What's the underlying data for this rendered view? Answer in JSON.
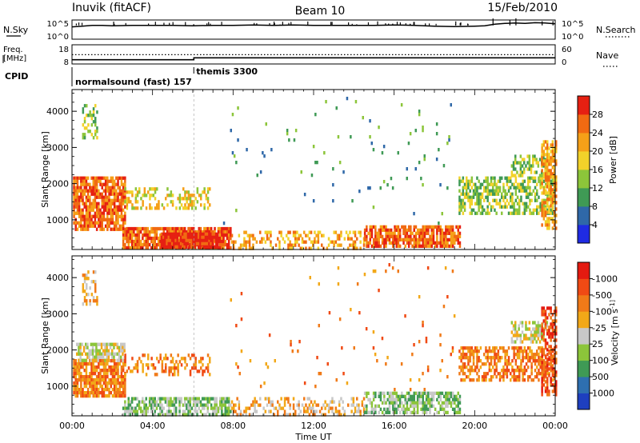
{
  "header": {
    "title": "Inuvik (fitACF)",
    "beam": "Beam 10",
    "date": "15/Feb/2010"
  },
  "chart_data": [
    {
      "type": "line",
      "name": "noise-panel",
      "labels": {
        "left": "N.Sky",
        "right": "N.Search"
      },
      "left_ticks": [
        "10^5",
        "10^0"
      ],
      "right_ticks": [
        "10^5",
        "10^0"
      ],
      "x": [
        0,
        0.5,
        1,
        1.5,
        2,
        3,
        4,
        5,
        6,
        7,
        8,
        9,
        10,
        11,
        12,
        13,
        14,
        15,
        16,
        17,
        18,
        19,
        20,
        20.5,
        21,
        21.5,
        22,
        22.5,
        23,
        23.5,
        24
      ],
      "y_log10": [
        3.2,
        3.4,
        3.6,
        3.6,
        3.5,
        3.6,
        3.6,
        3.6,
        3.5,
        3.6,
        3.6,
        3.7,
        3.6,
        3.7,
        3.6,
        3.6,
        3.6,
        3.6,
        3.7,
        3.6,
        3.4,
        3.3,
        3.4,
        3.5,
        3.9,
        4.1,
        4.2,
        4.1,
        4.3,
        4.2,
        4.0
      ]
    },
    {
      "type": "line",
      "name": "frequency-panel",
      "labels": {
        "left_line1": "Freq.",
        "left_line2": "[MHz]",
        "right": "Nave"
      },
      "left_ticks": [
        "18",
        "8"
      ],
      "right_ticks": [
        "60",
        "0"
      ],
      "freq_x": [
        0,
        6.05,
        6.05,
        24
      ],
      "freq_y": [
        10.2,
        10.2,
        11.2,
        11.2
      ],
      "nave_x": [
        0,
        24
      ],
      "nave_y": [
        29,
        29
      ]
    },
    {
      "type": "table",
      "name": "cpid-panel",
      "label": "CPID",
      "segments": [
        {
          "start": 0,
          "label": "normalsound (fast) 157"
        },
        {
          "start": 6.05,
          "label": "themis 3300"
        }
      ]
    },
    {
      "type": "heatmap",
      "name": "power-panel",
      "xlabel": "",
      "ylabel": "Slant Range [km]",
      "ylim": [
        180,
        4600
      ],
      "yticks": [
        "1000",
        "2000",
        "3000",
        "4000"
      ],
      "colorbar": {
        "label": "Power [dB]",
        "ticks": [
          "4",
          "8",
          "12",
          "16",
          "20",
          "24",
          "28"
        ],
        "colors": [
          "#1f2be3",
          "#2f68a8",
          "#3f9a55",
          "#8cc53a",
          "#f2d22a",
          "#f5a018",
          "#f16a12",
          "#e62012"
        ]
      },
      "regions": [
        {
          "t0": 0.05,
          "t1": 2.6,
          "r0": 700,
          "r1": 2200,
          "level": 6,
          "density": 0.8
        },
        {
          "t0": 0.5,
          "t1": 1.2,
          "r0": 3300,
          "r1": 4200,
          "level": 3,
          "density": 0.35
        },
        {
          "t0": 2.6,
          "t1": 6.8,
          "r0": 1300,
          "r1": 1900,
          "level": 4,
          "density": 0.35
        },
        {
          "t0": 2.5,
          "t1": 7.9,
          "r0": 250,
          "r1": 800,
          "level": 6,
          "density": 0.85
        },
        {
          "t0": 4.4,
          "t1": 7.2,
          "r0": 250,
          "r1": 650,
          "level": 7,
          "density": 0.95
        },
        {
          "t0": 7.9,
          "t1": 14.5,
          "r0": 250,
          "r1": 700,
          "level": 5,
          "density": 0.35
        },
        {
          "t0": 14.5,
          "t1": 19.3,
          "r0": 250,
          "r1": 850,
          "level": 6,
          "density": 0.8
        },
        {
          "t0": 19.2,
          "t1": 24,
          "r0": 1200,
          "r1": 2200,
          "level": 3,
          "density": 0.55
        },
        {
          "t0": 21.8,
          "t1": 23.6,
          "r0": 2200,
          "r1": 2800,
          "level": 3,
          "density": 0.55
        },
        {
          "t0": 23.3,
          "t1": 24,
          "r0": 800,
          "r1": 3200,
          "level": 5,
          "density": 0.6
        },
        {
          "t0": 7.5,
          "t1": 19,
          "r0": 900,
          "r1": 4400,
          "level": 2,
          "density": 0.015
        }
      ]
    },
    {
      "type": "heatmap",
      "name": "velocity-panel",
      "xlabel": "Time UT",
      "ylabel": "Slant Range [km]",
      "ylim": [
        180,
        4600
      ],
      "yticks": [
        "1000",
        "2000",
        "3000",
        "4000"
      ],
      "xticks": [
        "00:00",
        "04:00",
        "08:00",
        "12:00",
        "16:00",
        "20:00",
        "00:00"
      ],
      "colorbar": {
        "label": "Velocity [m s^-1]",
        "ticks": [
          "1000",
          "500",
          "100",
          "25",
          "-25",
          "-100",
          "-500",
          "-1000"
        ],
        "colors": [
          "#1e3fbf",
          "#2e6fb0",
          "#3f9a55",
          "#8cc53a",
          "#c8c8c8",
          "#f2a818",
          "#f07a18",
          "#f04a14",
          "#e41a10"
        ]
      },
      "regions": [
        {
          "t0": 0.05,
          "t1": 2.6,
          "r0": 700,
          "r1": 1750,
          "level": 6,
          "density": 0.8
        },
        {
          "t0": 0.2,
          "t1": 2.6,
          "r0": 1750,
          "r1": 2200,
          "level": 4,
          "density": 0.7
        },
        {
          "t0": 0.5,
          "t1": 1.2,
          "r0": 3300,
          "r1": 4200,
          "level": 5,
          "density": 0.3
        },
        {
          "t0": 2.6,
          "t1": 6.8,
          "r0": 1300,
          "r1": 1900,
          "level": 6,
          "density": 0.35
        },
        {
          "t0": 2.5,
          "t1": 7.9,
          "r0": 250,
          "r1": 700,
          "level": 3,
          "density": 0.7
        },
        {
          "t0": 7.9,
          "t1": 14.5,
          "r0": 250,
          "r1": 700,
          "level": 5,
          "density": 0.35
        },
        {
          "t0": 14.5,
          "t1": 19.3,
          "r0": 250,
          "r1": 850,
          "level": 3,
          "density": 0.65
        },
        {
          "t0": 19.2,
          "t1": 24,
          "r0": 1200,
          "r1": 2100,
          "level": 6,
          "density": 0.55
        },
        {
          "t0": 21.8,
          "t1": 23.6,
          "r0": 2200,
          "r1": 2800,
          "level": 4,
          "density": 0.55
        },
        {
          "t0": 23.3,
          "t1": 24,
          "r0": 800,
          "r1": 3200,
          "level": 7,
          "density": 0.5
        },
        {
          "t0": 7.5,
          "t1": 19,
          "r0": 900,
          "r1": 4400,
          "level": 6,
          "density": 0.015
        }
      ]
    }
  ]
}
